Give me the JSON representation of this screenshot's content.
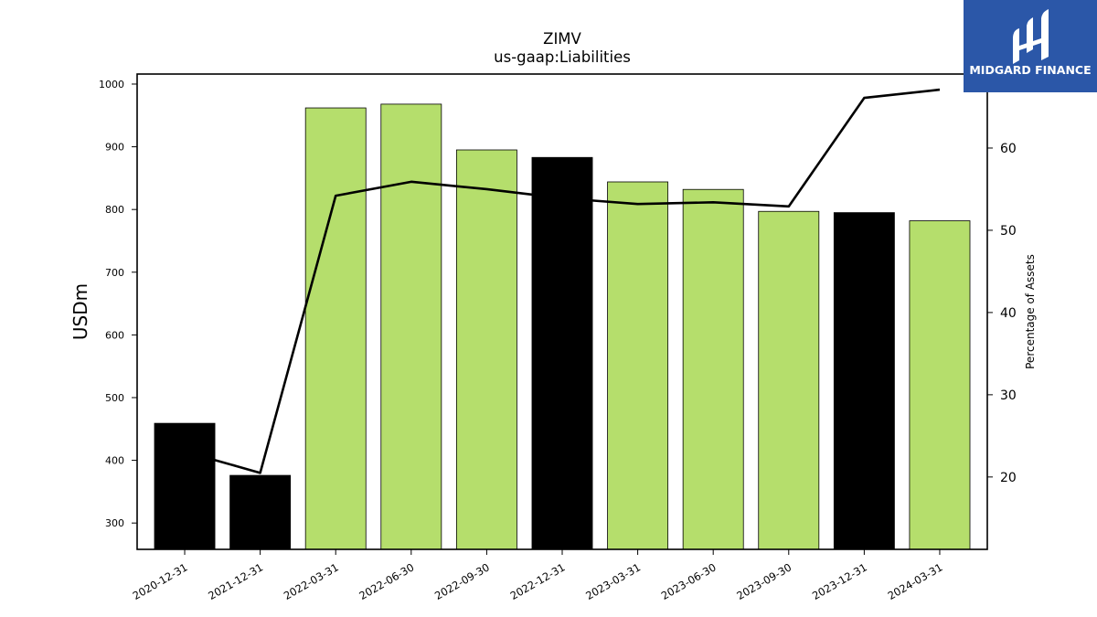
{
  "logo": {
    "text": "MIDGARD FINANCE",
    "bg_color": "#2B57A8"
  },
  "chart_data": {
    "type": "bar",
    "title": "ZIMV",
    "subtitle": "us-gaap:Liabilities",
    "ylabel": "USDm",
    "y2label": "Percentage of Assets",
    "ylim": [
      258,
      1016
    ],
    "y2lim": [
      11.2,
      69.0
    ],
    "yticks": [
      300,
      400,
      500,
      600,
      700,
      800,
      900,
      1000
    ],
    "y2ticks": [
      20,
      30,
      40,
      50,
      60
    ],
    "categories": [
      "2020-12-31",
      "2021-12-31",
      "2022-03-31",
      "2022-06-30",
      "2022-09-30",
      "2022-12-31",
      "2023-03-31",
      "2023-06-30",
      "2023-09-30",
      "2023-12-31",
      "2024-03-31"
    ],
    "values": [
      459,
      376,
      962,
      968,
      895,
      883,
      844,
      832,
      797,
      795,
      782
    ],
    "bar_colors": [
      "#000000",
      "#000000",
      "#b5de6c",
      "#b5de6c",
      "#b5de6c",
      "#000000",
      "#b5de6c",
      "#b5de6c",
      "#b5de6c",
      "#000000",
      "#b5de6c"
    ],
    "line_series": {
      "name": "Percentage of Assets",
      "values": [
        23.1,
        20.5,
        54.2,
        55.9,
        55.0,
        53.9,
        53.2,
        53.4,
        52.9,
        66.1,
        67.1
      ],
      "color": "#000000"
    },
    "grid": false
  }
}
